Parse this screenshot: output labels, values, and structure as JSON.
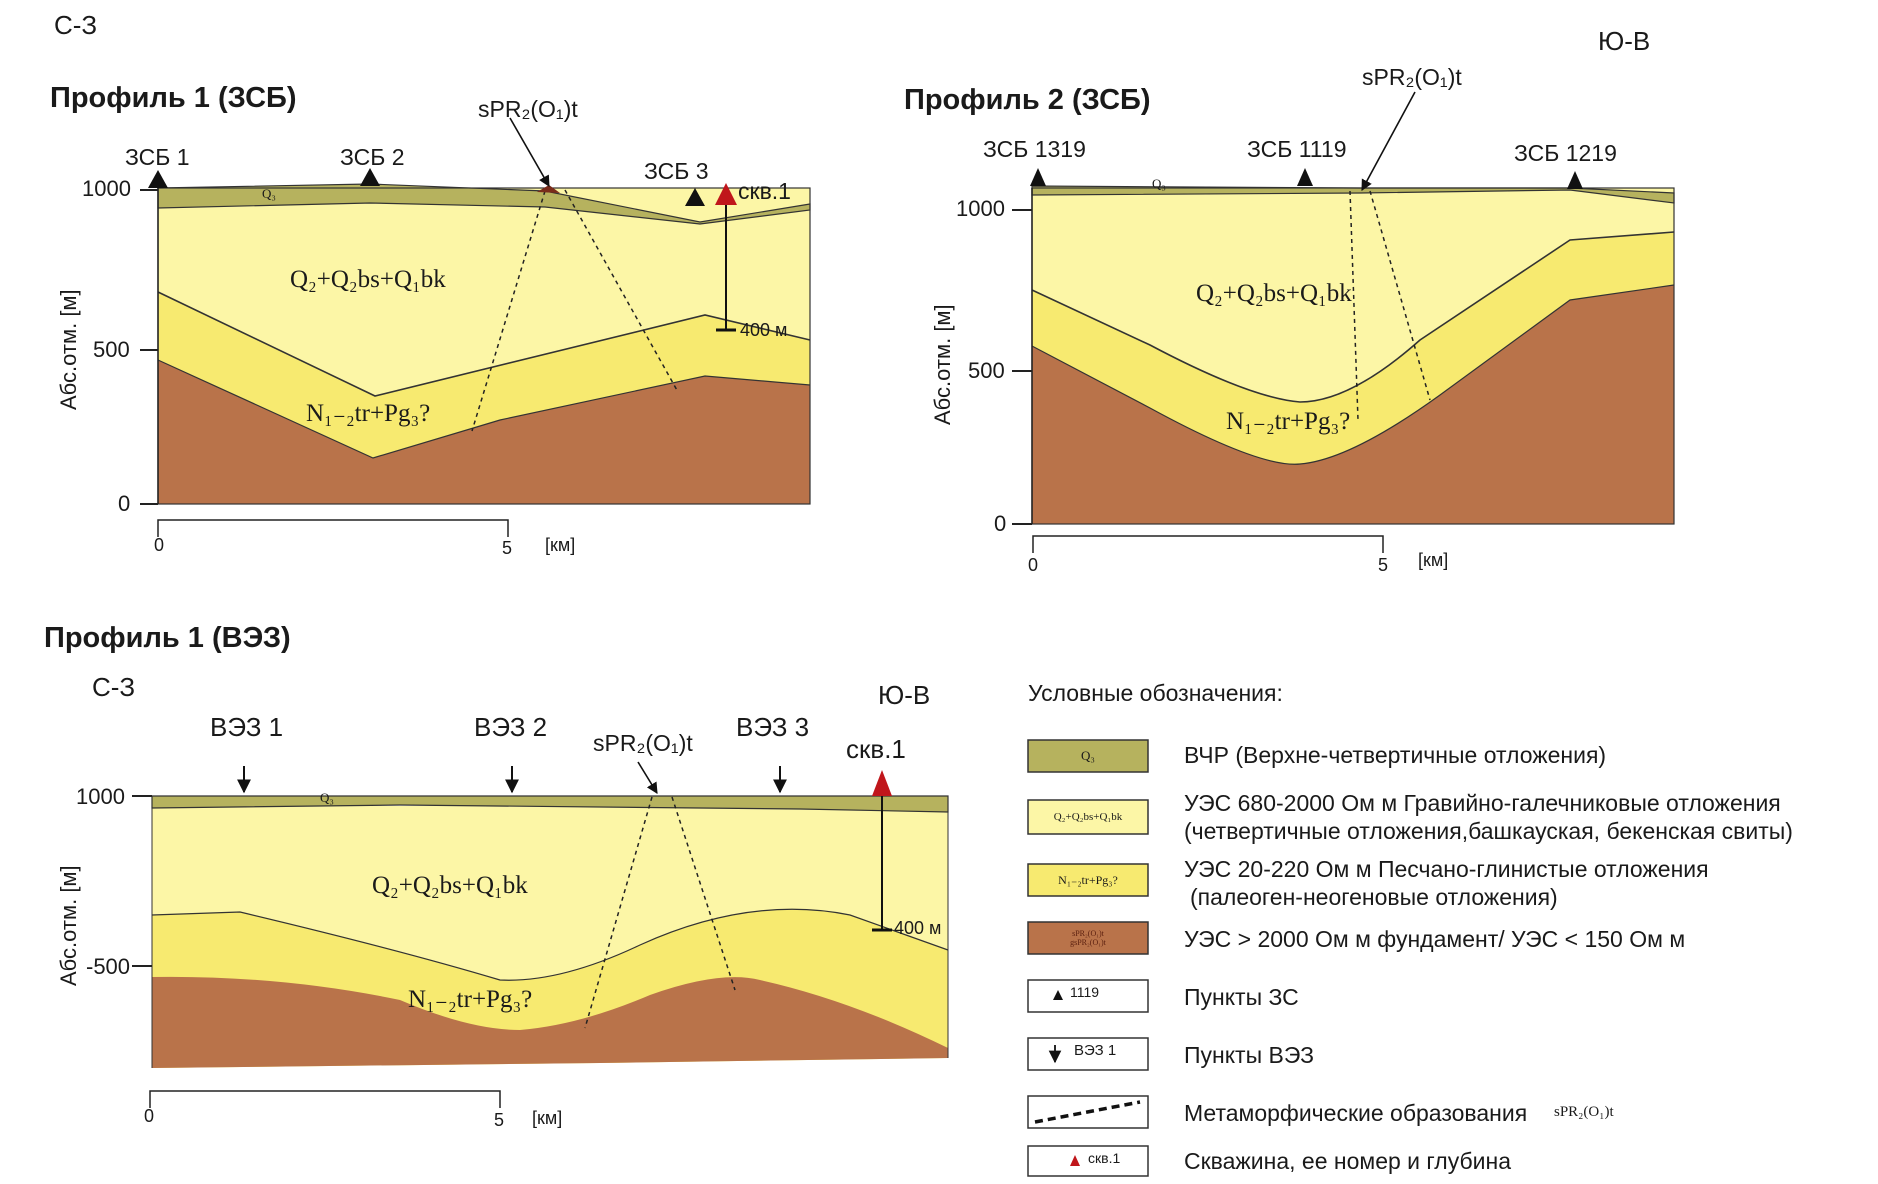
{
  "p1": {
    "title": "Профиль 1 (ЗСБ)",
    "nw": "С-З",
    "stations": [
      "ЗСБ 1",
      "ЗСБ 2",
      "ЗСБ 3"
    ],
    "well": "скв.1",
    "well_depth": "400 м",
    "fault": "sPR₂(O₁)t",
    "y_ticks": [
      "1000",
      "500",
      "0"
    ],
    "x_ticks": [
      "0",
      "5"
    ],
    "x_unit": "[км]",
    "y_axis_label": "Абс.отм. [м]",
    "unit_q3": "Q₃",
    "unit_q": "Q₂+Q₂bs+Q₁bk",
    "unit_n": "N₁₋₂tr+Pg₃?"
  },
  "p2": {
    "title": "Профиль 2 (ЗСБ)",
    "se": "Ю-В",
    "stations": [
      "ЗСБ 1319",
      "ЗСБ 1119",
      "ЗСБ 1219"
    ],
    "fault": "sPR₂(O₁)t",
    "y_ticks": [
      "1000",
      "500",
      "0"
    ],
    "x_ticks": [
      "0",
      "5"
    ],
    "x_unit": "[км]",
    "y_axis_label": "Абс.отм. [м]",
    "unit_q3": "Q₃",
    "unit_q": "Q₂+Q₂bs+Q₁bk",
    "unit_n": "N₁₋₂tr+Pg₃?"
  },
  "p3": {
    "title": "Профиль 1 (ВЭЗ)",
    "nw": "С-З",
    "se": "Ю-В",
    "stations": [
      "ВЭЗ 1",
      "ВЭЗ 2",
      "ВЭЗ 3"
    ],
    "well": "скв.1",
    "well_depth": "400 м",
    "fault": "sPR₂(O₁)t",
    "y_ticks": [
      "1000",
      "-500"
    ],
    "x_ticks": [
      "0",
      "5"
    ],
    "x_unit": "[км]",
    "y_axis_label": "Абс.отм. [м]",
    "unit_q3": "Q₃",
    "unit_q": "Q₂+Q₂bs+Q₁bk",
    "unit_n": "N₁₋₂tr+Pg₃?"
  },
  "legend": {
    "title": "Условные обозначения:",
    "items": [
      {
        "box": "Q₃",
        "text": "ВЧР (Верхне-четвертичные отложения)",
        "color": "#b6b25e"
      },
      {
        "box": "Q₂+Q₂bs+Q₁bk",
        "text": "УЭС 680-2000 Ом м Гравийно-галечниковые отложения",
        "text2": "(четвертичные отложения,башкауская, бекенская свиты)",
        "color": "#fcf6a6"
      },
      {
        "box": "N₁₋₂tr+Pg₃?",
        "text": "УЭС 20-220 Ом м Песчано-глинистые отложения",
        "text2": "(палеоген-неогеновые отложения)",
        "color": "#f7ea70"
      },
      {
        "box": "sPR₂(O₁)t",
        "box2": "gsPR₂(O₁)t",
        "text": "УЭС > 2000 Ом м фундамент/ УЭС < 150 Ом м",
        "color": "#b9734a"
      },
      {
        "box": "1119",
        "text": "Пункты ЗС"
      },
      {
        "box": "ВЭЗ 1",
        "text": "Пункты ВЭЗ"
      },
      {
        "box": "",
        "text": "Метаморфические образования",
        "extra": "sPR₂(O₁)t"
      },
      {
        "box": "скв.1",
        "text": "Скважина, ее номер и глубина"
      }
    ]
  },
  "colors": {
    "q3": "#b6b25e",
    "q": "#fcf6a6",
    "n": "#f7ea70",
    "base": "#b9734a",
    "well": "#c0161b"
  }
}
